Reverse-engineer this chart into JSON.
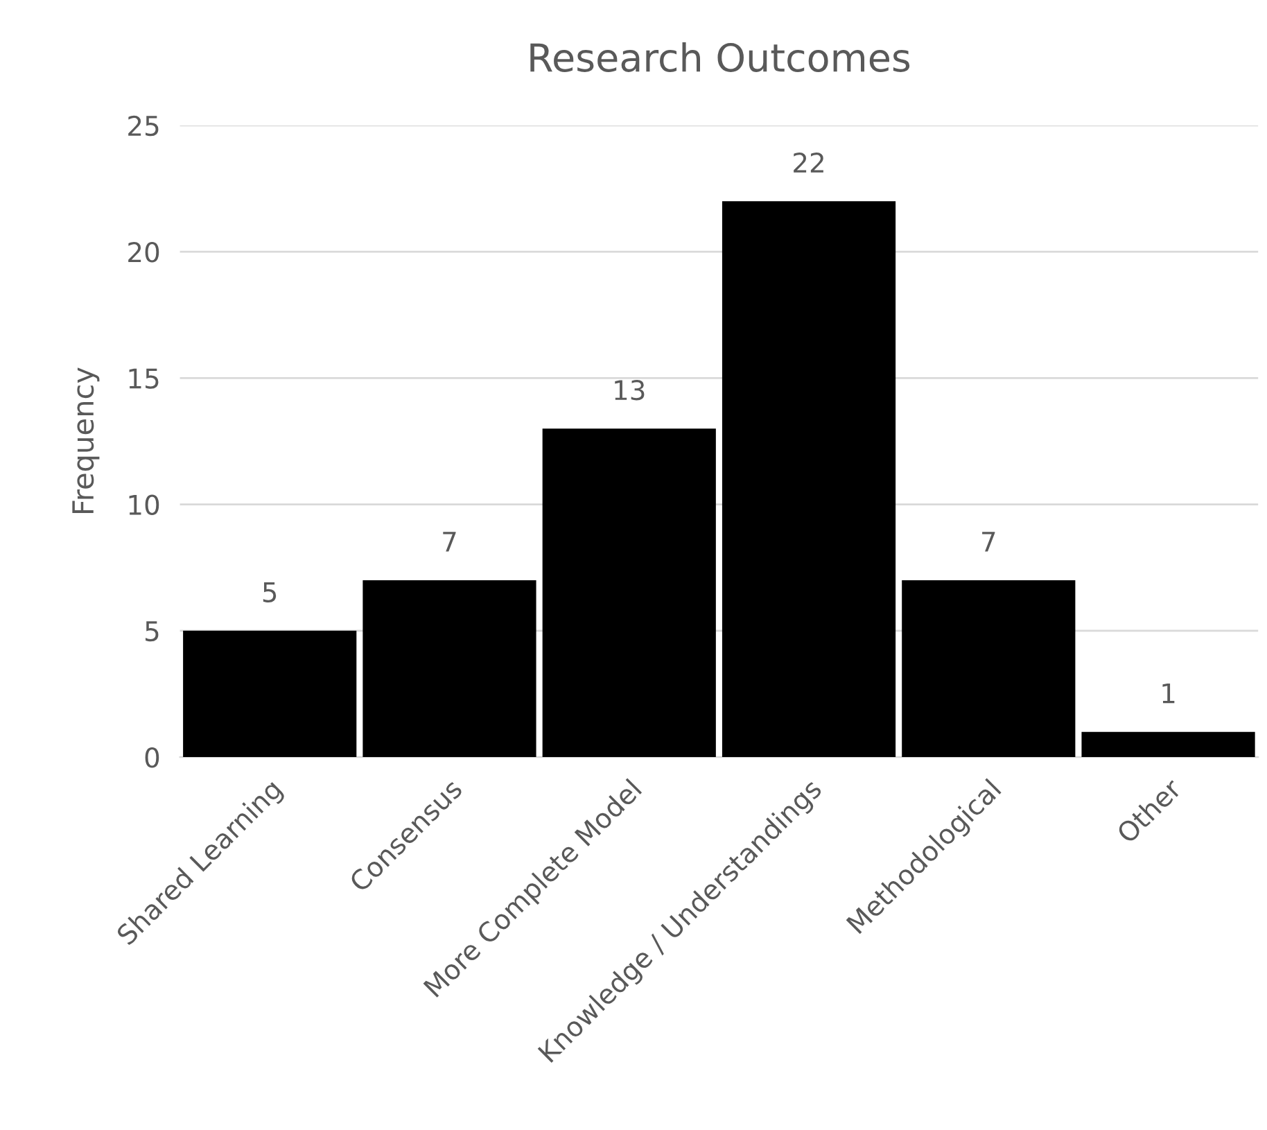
{
  "chart_data": {
    "type": "bar",
    "title": "Research Outcomes",
    "ylabel": "Frequency",
    "categories": [
      "Shared Learning",
      "Consensus",
      "More Complete Model",
      "Knowledge / Understandings",
      "Methodological",
      "Other"
    ],
    "values": [
      5,
      7,
      13,
      22,
      7,
      1
    ],
    "color": "#000000",
    "ylim": [
      0,
      25
    ],
    "yticks": [
      0,
      5,
      10,
      15,
      20,
      25
    ],
    "grid": "y",
    "data_labels": true
  }
}
